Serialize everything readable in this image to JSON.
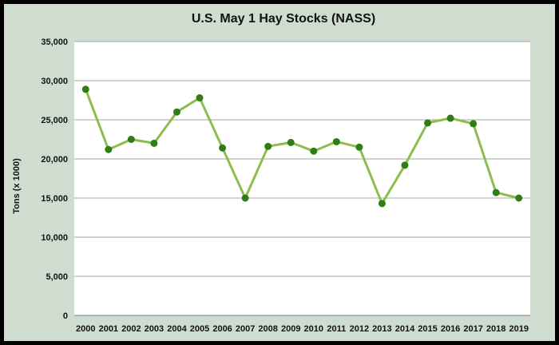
{
  "colors": {
    "background": "#cfdcd0",
    "plot_area": "#ffffff",
    "line": "#8cbd4e",
    "marker": "#2f7d14",
    "gridline": "#a6a6a6",
    "border": "#000000"
  },
  "chart_data": {
    "type": "line",
    "title": "U.S. May 1 Hay Stocks (NASS)",
    "xlabel": "",
    "ylabel": "Tons (x 1000)",
    "ylim": [
      0,
      35000
    ],
    "yticks": [
      "0",
      "5,000",
      "10,000",
      "15,000",
      "20,000",
      "25,000",
      "30,000",
      "35,000"
    ],
    "ytick_values": [
      0,
      5000,
      10000,
      15000,
      20000,
      25000,
      30000,
      35000
    ],
    "grid": true,
    "legend": "none",
    "categories": [
      "2000",
      "2001",
      "2002",
      "2003",
      "2004",
      "2005",
      "2006",
      "2007",
      "2008",
      "2009",
      "2010",
      "2011",
      "2012",
      "2013",
      "2014",
      "2015",
      "2016",
      "2017",
      "2018",
      "2019"
    ],
    "series": [
      {
        "values": [
          28900,
          21200,
          22500,
          22000,
          26000,
          27800,
          21400,
          15000,
          21600,
          22100,
          21000,
          22200,
          21500,
          14300,
          19200,
          24600,
          25200,
          24500,
          15700,
          15000
        ]
      }
    ]
  }
}
